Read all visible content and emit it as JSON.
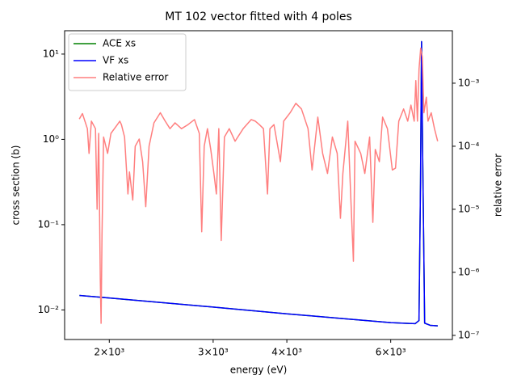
{
  "chart_data": {
    "type": "line",
    "title": "MT 102 vector fitted with 4 poles",
    "xlabel": "energy (eV)",
    "ylabel": "cross section (b)",
    "y2label": "relative error",
    "xscale": "log",
    "yscale": "log",
    "y2scale": "log",
    "xlim": [
      1680,
      7633
    ],
    "ylim": [
      0.0045,
      18.8
    ],
    "y2lim": [
      8.6e-08,
      0.0068
    ],
    "xticks": [
      {
        "value": 2000,
        "label": "2×10³"
      },
      {
        "value": 3000,
        "label": "3×10³"
      },
      {
        "value": 4000,
        "label": "4×10³"
      },
      {
        "value": 6000,
        "label": "6×10³"
      }
    ],
    "yticks": [
      {
        "value": 0.01,
        "label": "10⁻²"
      },
      {
        "value": 0.1,
        "label": "10⁻¹"
      },
      {
        "value": 1,
        "label": "10⁰"
      },
      {
        "value": 10,
        "label": "10¹"
      }
    ],
    "y2ticks": [
      {
        "value": 1e-07,
        "label": "10⁻⁷"
      },
      {
        "value": 1e-06,
        "label": "10⁻⁶"
      },
      {
        "value": 1e-05,
        "label": "10⁻⁵"
      },
      {
        "value": 0.0001,
        "label": "10⁻⁴"
      },
      {
        "value": 0.001,
        "label": "10⁻³"
      }
    ],
    "ycolor": "#0000ff",
    "y2color": "#ff0000",
    "legend": "upper left",
    "series": [
      {
        "name": "ACE xs",
        "color": "#008000",
        "x": [
          1780,
          2000,
          3000,
          4000,
          5000,
          6000,
          6600,
          6700,
          6740,
          6760,
          6768,
          6776,
          6800,
          6850,
          7000,
          7210
        ],
        "values": [
          0.0148,
          0.0138,
          0.0108,
          0.009,
          0.0079,
          0.0071,
          0.0069,
          0.0075,
          0.3,
          5,
          14,
          5,
          0.5,
          0.007,
          0.0066,
          0.0065
        ]
      },
      {
        "name": "VF xs",
        "color": "#0000ff",
        "x": [
          1780,
          2000,
          3000,
          4000,
          5000,
          6000,
          6600,
          6700,
          6740,
          6760,
          6768,
          6776,
          6800,
          6850,
          7000,
          7210
        ],
        "values": [
          0.0148,
          0.0138,
          0.0108,
          0.009,
          0.0079,
          0.0071,
          0.0069,
          0.0075,
          0.3,
          5,
          14,
          5,
          0.5,
          0.007,
          0.0066,
          0.0065
        ]
      },
      {
        "name": "Relative error",
        "color": "#ff7f7f",
        "axis": "y2",
        "x": [
          1779,
          1801,
          1836,
          1848,
          1865,
          1895,
          1907,
          1919,
          1931,
          1937,
          1944,
          1956,
          1987,
          2013,
          2064,
          2084,
          2097,
          2123,
          2151,
          2164,
          2192,
          2213,
          2248,
          2278,
          2306,
          2336,
          2381,
          2441,
          2488,
          2535,
          2585,
          2651,
          2719,
          2789,
          2842,
          2869,
          2897,
          2934,
          2972,
          3009,
          3038,
          3067,
          3096,
          3135,
          3195,
          3268,
          3373,
          3481,
          3537,
          3593,
          3651,
          3709,
          3744,
          3804,
          3901,
          3951,
          4052,
          4143,
          4235,
          4345,
          4414,
          4514,
          4600,
          4688,
          4778,
          4869,
          4931,
          4978,
          5074,
          5138,
          5187,
          5220,
          5337,
          5423,
          5526,
          5596,
          5649,
          5740,
          5813,
          5924,
          6038,
          6114,
          6192,
          6310,
          6412,
          6493,
          6576,
          6618,
          6660,
          6702,
          6745,
          6788,
          6831,
          6895,
          6940,
          7028,
          7118,
          7207
        ],
        "values": [
          0.00027,
          0.00033,
          0.00019,
          7.7e-05,
          0.00025,
          0.00019,
          1e-05,
          0.00016,
          7.9e-07,
          1.55e-07,
          4e-06,
          0.00014,
          7.7e-05,
          0.00016,
          0.00022,
          0.00025,
          0.00022,
          0.00014,
          1.75e-05,
          3.9e-05,
          1.4e-05,
          0.0001,
          0.00013,
          5.7e-05,
          1.1e-05,
          0.0001,
          0.000235,
          0.00034,
          0.00025,
          0.00019,
          0.000235,
          0.00019,
          0.00022,
          0.000265,
          0.00016,
          4.4e-06,
          0.0001,
          0.00019,
          8.9e-05,
          3.7e-05,
          1.75e-05,
          0.00019,
          3.2e-06,
          0.00014,
          0.00019,
          0.00012,
          0.00019,
          0.000265,
          0.00025,
          0.00022,
          0.00019,
          1.75e-05,
          0.00019,
          0.00022,
          5.7e-05,
          0.00025,
          0.00034,
          0.00048,
          0.00039,
          0.00019,
          4.2e-05,
          0.00029,
          7.7e-05,
          3.7e-05,
          0.00014,
          7.7e-05,
          7.2e-06,
          3.7e-05,
          0.00025,
          1.3e-05,
          1.5e-06,
          0.00012,
          7.7e-05,
          3.7e-05,
          0.00014,
          6.2e-06,
          8.9e-05,
          5.7e-05,
          0.00029,
          0.00019,
          4.2e-05,
          4.5e-05,
          0.00025,
          0.00039,
          0.00025,
          0.00045,
          0.00025,
          0.0011,
          0.00025,
          0.0017,
          0.0036,
          0.0026,
          0.00034,
          0.0006,
          0.00025,
          0.00034,
          0.00019,
          0.00012
        ]
      }
    ]
  }
}
